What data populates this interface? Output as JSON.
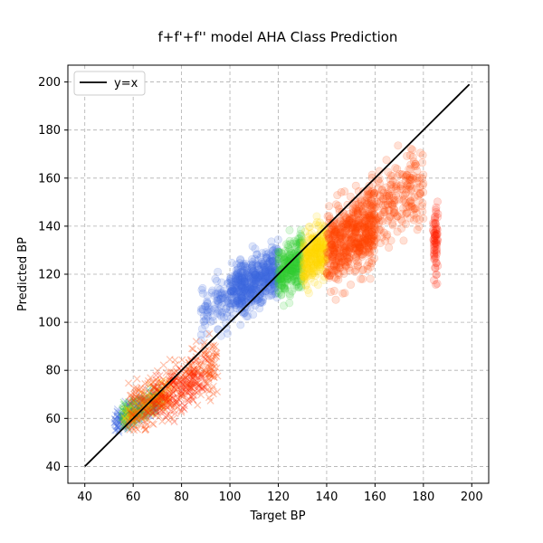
{
  "chart_data": {
    "type": "scatter",
    "title": "f+f'+f'' model AHA Class Prediction",
    "xlabel": "Target BP",
    "ylabel": "Predicted BP",
    "xlim": [
      33,
      207
    ],
    "ylim": [
      33,
      207
    ],
    "xticks": [
      40,
      60,
      80,
      100,
      120,
      140,
      160,
      180,
      200
    ],
    "yticks": [
      40,
      60,
      80,
      100,
      120,
      140,
      160,
      180,
      200
    ],
    "grid": true,
    "legend": {
      "placement": "top-left",
      "entries": [
        "y=x"
      ]
    },
    "reference_line": {
      "name": "y=x",
      "x": [
        40,
        199
      ],
      "y": [
        40,
        199
      ],
      "color": "#000000"
    },
    "series": [
      {
        "marker": "circle",
        "color": "#4169e1",
        "x_range": [
          100,
          120
        ],
        "y_range": [
          95,
          140
        ],
        "center": [
          110,
          117
        ],
        "count": 520
      },
      {
        "marker": "circle",
        "color": "#4169e1",
        "x_range": [
          88,
          100
        ],
        "y_range": [
          85,
          130
        ],
        "center": [
          95,
          108
        ],
        "count": 90
      },
      {
        "marker": "circle",
        "color": "#32cd32",
        "x_range": [
          120,
          130
        ],
        "y_range": [
          105,
          150
        ],
        "center": [
          125,
          123
        ],
        "count": 260
      },
      {
        "marker": "circle",
        "color": "#ffd700",
        "x_range": [
          130,
          140
        ],
        "y_range": [
          108,
          152
        ],
        "center": [
          135,
          128
        ],
        "count": 260
      },
      {
        "marker": "circle",
        "color": "#ff4500",
        "x_range": [
          140,
          160
        ],
        "y_range": [
          105,
          165
        ],
        "center": [
          150,
          135
        ],
        "count": 520
      },
      {
        "marker": "circle",
        "color": "#ff4500",
        "x_range": [
          155,
          180
        ],
        "y_range": [
          125,
          190
        ],
        "center": [
          167,
          150
        ],
        "count": 260
      },
      {
        "marker": "circle",
        "color": "#ff2000",
        "x_range": [
          184,
          186
        ],
        "y_range": [
          105,
          165
        ],
        "center": [
          185,
          135
        ],
        "count": 70
      },
      {
        "marker": "cross",
        "color": "#4169e1",
        "x_range": [
          52,
          70
        ],
        "y_range": [
          52,
          72
        ],
        "center": [
          58,
          61
        ],
        "count": 260
      },
      {
        "marker": "cross",
        "color": "#32cd32",
        "x_range": [
          55,
          72
        ],
        "y_range": [
          55,
          75
        ],
        "center": [
          62,
          64
        ],
        "count": 160
      },
      {
        "marker": "cross",
        "color": "#ffd700",
        "x_range": [
          56,
          75
        ],
        "y_range": [
          56,
          76
        ],
        "center": [
          64,
          65
        ],
        "count": 120
      },
      {
        "marker": "cross",
        "color": "#ff4500",
        "x_range": [
          58,
          95
        ],
        "y_range": [
          55,
          100
        ],
        "center": [
          72,
          70
        ],
        "count": 360
      },
      {
        "marker": "cross",
        "color": "#ff2000",
        "x_range": [
          68,
          90
        ],
        "y_range": [
          55,
          95
        ],
        "center": [
          78,
          72
        ],
        "count": 140
      }
    ]
  }
}
